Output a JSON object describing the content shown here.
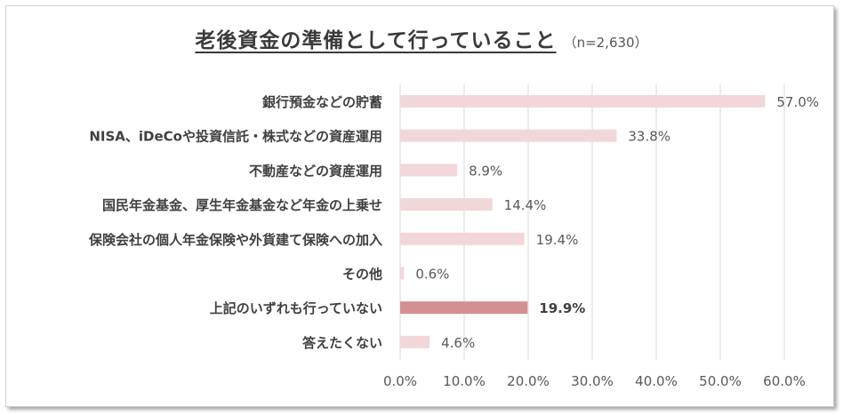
{
  "chart_data": {
    "type": "bar",
    "orientation": "horizontal",
    "title": "老後資金の準備として行っていること",
    "subtitle": "（n=2,630）",
    "categories": [
      "銀行預金などの貯蓄",
      "NISA、iDeCoや投資信託・株式などの資産運用",
      "不動産などの資産運用",
      "国民年金基金、厚生年金基金など年金の上乗せ",
      "保険会社の個人年金保険や外貨建て保険への加入",
      "その他",
      "上記のいずれも行っていない",
      "答えたくない"
    ],
    "values": [
      57.0,
      33.8,
      8.9,
      14.4,
      19.4,
      0.6,
      19.9,
      4.6
    ],
    "value_labels": [
      "57.0%",
      "33.8%",
      "8.9%",
      "14.4%",
      "19.4%",
      "0.6%",
      "19.9%",
      "4.6%"
    ],
    "highlight_index": 6,
    "xlim": [
      0,
      60
    ],
    "xticks": [
      0,
      10,
      20,
      30,
      40,
      50,
      60
    ],
    "xtick_labels": [
      "0.0%",
      "10.0%",
      "20.0%",
      "30.0%",
      "40.0%",
      "50.0%",
      "60.0%"
    ],
    "grid": true,
    "legend": "none",
    "colors": {
      "bar": "#f2d7d9",
      "highlight": "#d48f93",
      "grid": "#d9d9d9",
      "label": "#404040",
      "value": "#595959"
    }
  }
}
